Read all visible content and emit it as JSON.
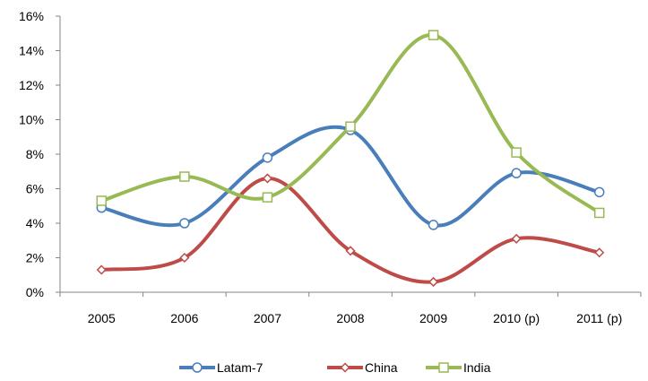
{
  "chart_data": {
    "type": "line",
    "smooth": true,
    "categories": [
      "2005",
      "2006",
      "2007",
      "2008",
      "2009",
      "2010 (p)",
      "2011 (p)"
    ],
    "series": [
      {
        "name": "Latam-7",
        "color": "#4a7ebb",
        "marker": "circle",
        "values": [
          4.9,
          4.0,
          7.8,
          9.4,
          3.9,
          6.9,
          5.8
        ]
      },
      {
        "name": "China",
        "color": "#be4b48",
        "marker": "diamond",
        "values": [
          1.3,
          2.0,
          6.6,
          2.4,
          0.6,
          3.1,
          2.3
        ]
      },
      {
        "name": "India",
        "color": "#98b954",
        "marker": "square",
        "values": [
          5.3,
          6.7,
          5.5,
          9.6,
          14.9,
          8.1,
          4.6
        ]
      }
    ],
    "ylim": [
      0,
      16
    ],
    "yticks": [
      0,
      2,
      4,
      6,
      8,
      10,
      12,
      14,
      16
    ],
    "ytick_labels": [
      "0%",
      "2%",
      "4%",
      "6%",
      "8%",
      "10%",
      "12%",
      "14%",
      "16%"
    ],
    "title": "",
    "xlabel": "",
    "ylabel": "",
    "grid": false,
    "legend_position": "bottom"
  }
}
